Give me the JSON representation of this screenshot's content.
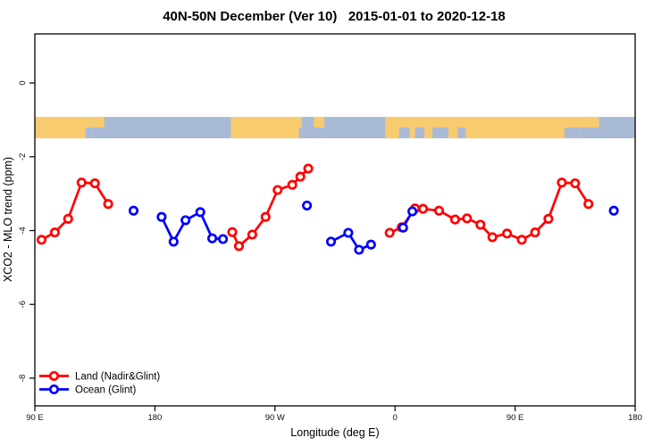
{
  "title": "40N-50N December (Ver 10)   2015-01-01 to 2020-12-18",
  "chart_data": {
    "type": "line",
    "title": "40N-50N December (Ver 10)   2015-01-01 to 2020-12-18",
    "xlabel": "Longitude (deg E)",
    "ylabel": "XCO2 - MLO trend (ppm)",
    "grid": false,
    "x_axis": {
      "min": 90,
      "max": 540,
      "ticks": [
        {
          "value": 90,
          "label": "90 E"
        },
        {
          "value": 180,
          "label": "180"
        },
        {
          "value": 270,
          "label": "90 W"
        },
        {
          "value": 360,
          "label": "0"
        },
        {
          "value": 450,
          "label": "90 E"
        },
        {
          "value": 540,
          "label": "180"
        }
      ],
      "note": "axis wraps longitude: 90E to 180, 90W, 0, 90E, 180"
    },
    "y_axis": {
      "min": -8.75,
      "max": 1.33,
      "ticks": [
        {
          "value": 0,
          "label": "0"
        },
        {
          "value": -2,
          "label": "-2"
        },
        {
          "value": -4,
          "label": "-4"
        },
        {
          "value": -6,
          "label": "-6"
        },
        {
          "value": -8,
          "label": "-8"
        }
      ]
    },
    "series": [
      {
        "name": "Land (Nadir&Glint)",
        "color": "#ff0000",
        "marker": "open-circle",
        "segments": [
          [
            [
              95,
              -4.25
            ],
            [
              105,
              -4.05
            ],
            [
              115,
              -3.68
            ],
            [
              125,
              -2.7
            ],
            [
              135,
              -2.72
            ],
            [
              145,
              -3.28
            ]
          ],
          [
            [
              238,
              -4.04
            ],
            [
              243,
              -4.42
            ],
            [
              253,
              -4.11
            ],
            [
              263,
              -3.63
            ],
            [
              272,
              -2.9
            ],
            [
              283,
              -2.76
            ],
            [
              289,
              -2.54
            ],
            [
              295,
              -2.32
            ]
          ],
          [
            [
              356,
              -4.06
            ],
            [
              365,
              -3.91
            ],
            [
              375,
              -3.4
            ],
            [
              381,
              -3.41
            ],
            [
              393,
              -3.46
            ],
            [
              405,
              -3.7
            ],
            [
              414,
              -3.67
            ],
            [
              424,
              -3.84
            ],
            [
              433,
              -4.18
            ],
            [
              444,
              -4.08
            ],
            [
              455,
              -4.25
            ],
            [
              465,
              -4.05
            ],
            [
              475,
              -3.68
            ],
            [
              485,
              -2.7
            ],
            [
              495,
              -2.72
            ],
            [
              505,
              -3.28
            ]
          ]
        ]
      },
      {
        "name": "Ocean (Glint)",
        "color": "#0000ff",
        "marker": "open-circle",
        "segments": [
          [
            [
              164,
              -3.46
            ]
          ],
          [
            [
              185,
              -3.63
            ],
            [
              194,
              -4.3
            ],
            [
              203,
              -3.72
            ],
            [
              214,
              -3.5
            ],
            [
              223,
              -4.21
            ],
            [
              231,
              -4.23
            ]
          ],
          [
            [
              294,
              -3.32
            ]
          ],
          [
            [
              312,
              -4.3
            ],
            [
              325,
              -4.06
            ],
            [
              333,
              -4.52
            ],
            [
              342,
              -4.38
            ]
          ],
          [
            [
              366,
              -3.92
            ],
            [
              373,
              -3.48
            ]
          ],
          [
            [
              524,
              -3.46
            ]
          ]
        ]
      }
    ],
    "map_strip": {
      "description": "land/ocean world strip for 40N-50N drawn across plot",
      "value_top": -0.92,
      "value_bottom": -1.5,
      "land_color": "#f9cb6f",
      "ocean_color": "#a9bad7",
      "base": [
        [
          90,
          133,
          "land"
        ],
        [
          133,
          237,
          "ocean"
        ],
        [
          237,
          307,
          "land"
        ],
        [
          307,
          353,
          "ocean"
        ],
        [
          353,
          498,
          "land"
        ],
        [
          498,
          540,
          "ocean"
        ]
      ],
      "top_half": [
        [
          133,
          142,
          "land"
        ],
        [
          290,
          299,
          "ocean"
        ],
        [
          498,
          513,
          "land"
        ]
      ],
      "bottom_half": [
        [
          128,
          133,
          "ocean"
        ],
        [
          288,
          307,
          "ocean"
        ],
        [
          363,
          371,
          "ocean"
        ],
        [
          375,
          382,
          "ocean"
        ],
        [
          388,
          400,
          "ocean"
        ],
        [
          407,
          413,
          "ocean"
        ],
        [
          487,
          498,
          "ocean"
        ]
      ]
    },
    "legend": {
      "position": "bottom-left",
      "items": [
        {
          "label": "Land (Nadir&Glint)",
          "color": "#ff0000"
        },
        {
          "label": "Ocean (Glint)",
          "color": "#0000ff"
        }
      ]
    }
  }
}
